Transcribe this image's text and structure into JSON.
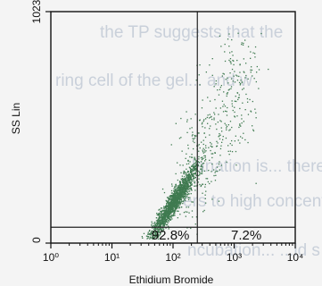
{
  "background_text": [
    "the TP suggests that the",
    "ring cell of the gel... and w",
    "lanation is... there... A",
    "ers to high concentration fo",
    "ncubation... ...ld s of A..."
  ],
  "chart_data": {
    "type": "scatter",
    "xlabel": "Ethidium Bromide",
    "ylabel": "SS Lin",
    "x_scale": "log",
    "xlim": [
      1,
      10000
    ],
    "ylim": [
      0,
      1023
    ],
    "x_tick_labels": [
      "10⁰",
      "10¹",
      "10²",
      "10³",
      "10⁴"
    ],
    "x_tick_values": [
      1,
      10,
      100,
      1000,
      10000
    ],
    "y_tick_labels": [
      "0",
      "1023"
    ],
    "y_tick_values": [
      0,
      1023
    ],
    "quadrant_gate": {
      "x": 250,
      "y": 70
    },
    "quadrant_percentages": [
      {
        "quadrant": "lower-left",
        "label": "92.8%"
      },
      {
        "quadrant": "lower-right",
        "label": "7.2%"
      }
    ],
    "point_color": "#3f7a50",
    "population_cluster": {
      "center_x": 100,
      "center_y": 180,
      "x_spread_log10": 0.25,
      "y_spread": 110,
      "tail_toward": "upper-right"
    },
    "grid": false,
    "legend": "none"
  }
}
